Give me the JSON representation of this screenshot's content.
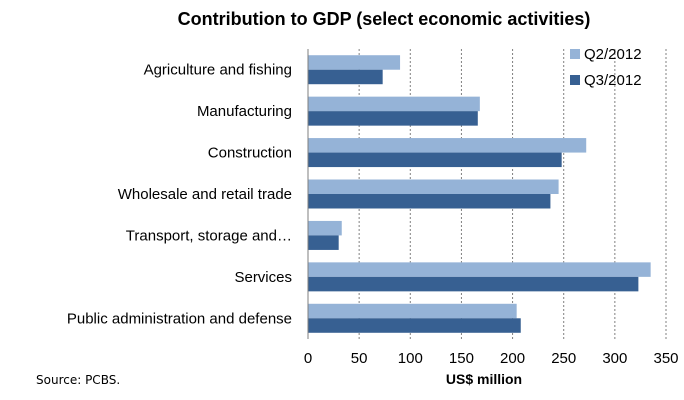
{
  "chart_data": {
    "type": "bar",
    "orientation": "horizontal",
    "title": "Contribution to GDP (select economic activities)",
    "xlabel": "US$ million",
    "ylabel": "",
    "categories": [
      "Agriculture and fishing",
      "Manufacturing",
      "Construction",
      "Wholesale and retail trade",
      "Transport, storage and…",
      "Services",
      "Public administration and defense"
    ],
    "series": [
      {
        "name": "Q2/2012",
        "color": "#95b3d7",
        "values": [
          90,
          168,
          272,
          245,
          33,
          335,
          204
        ]
      },
      {
        "name": "Q3/2012",
        "color": "#376092",
        "values": [
          73,
          166,
          248,
          237,
          30,
          323,
          208
        ]
      }
    ],
    "xlim": [
      0,
      350
    ],
    "xticks": [
      0,
      50,
      100,
      150,
      200,
      250,
      300,
      350
    ],
    "gridlines": "vertical-dotted",
    "legend": "top-right"
  },
  "source": "Source: PCBS."
}
